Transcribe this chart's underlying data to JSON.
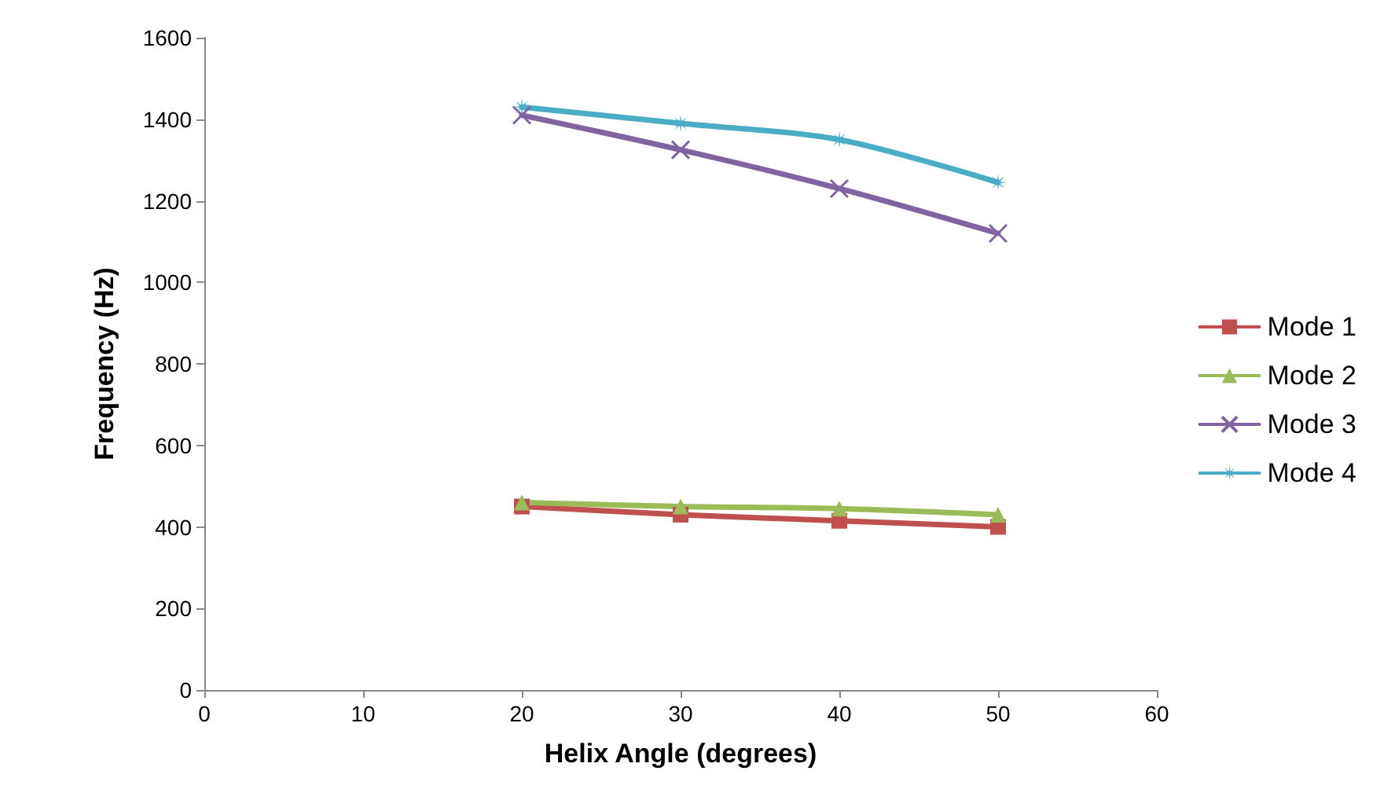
{
  "chart_data": {
    "type": "line",
    "xlabel": "Helix Angle (degrees)",
    "ylabel": "Frequency (Hz)",
    "x": [
      20,
      30,
      40,
      50
    ],
    "series": [
      {
        "name": "Mode 1",
        "color": "#c0504d",
        "marker": "square",
        "values": [
          450,
          430,
          415,
          400
        ]
      },
      {
        "name": "Mode 2",
        "color": "#9bbb59",
        "marker": "triangle",
        "values": [
          460,
          450,
          445,
          430
        ]
      },
      {
        "name": "Mode 3",
        "color": "#8064a2",
        "marker": "cross",
        "values": [
          1410,
          1325,
          1230,
          1120
        ]
      },
      {
        "name": "Mode 4",
        "color": "#4bacc6",
        "marker": "star",
        "values": [
          1430,
          1390,
          1350,
          1245
        ]
      }
    ],
    "xlim": [
      0,
      60
    ],
    "xticks": [
      0,
      10,
      20,
      30,
      40,
      50,
      60
    ],
    "ylim": [
      0,
      1600
    ],
    "yticks": [
      0,
      200,
      400,
      600,
      800,
      1000,
      1200,
      1400,
      1600
    ],
    "grid": false,
    "legend": "right",
    "line_style": "solid"
  }
}
